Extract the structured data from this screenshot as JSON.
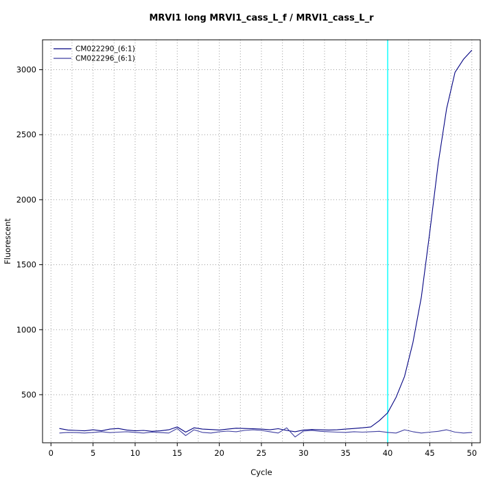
{
  "title": "MRVI1 long MRVI1_cass_L_f / MRVI1_cass_L_r",
  "colors": {
    "background": "#ffffff",
    "axis": "#000000",
    "grid": "#9a9a9a",
    "threshold": "#00ffff"
  },
  "chart_data": {
    "type": "line",
    "title": "MRVI1 long MRVI1_cass_L_f / MRVI1_cass_L_r",
    "xlabel": "Cycle",
    "ylabel": "Fluorescent",
    "xlim": [
      -1,
      51
    ],
    "ylim": [
      130,
      3230
    ],
    "x_ticks": [
      0,
      5,
      10,
      15,
      20,
      25,
      30,
      35,
      40,
      45,
      50
    ],
    "y_ticks": [
      500,
      1000,
      1500,
      2000,
      2500,
      3000
    ],
    "grid": {
      "x_step": 2.5,
      "y_step": 500,
      "style": "dotted",
      "color": "#9a9a9a"
    },
    "threshold_line": {
      "x": 40,
      "color": "#00ffff"
    },
    "legend_position": "top-left",
    "x": [
      1,
      2,
      3,
      4,
      5,
      6,
      7,
      8,
      9,
      10,
      11,
      12,
      13,
      14,
      15,
      16,
      17,
      18,
      19,
      20,
      21,
      22,
      23,
      24,
      25,
      26,
      27,
      28,
      29,
      30,
      31,
      32,
      33,
      34,
      35,
      36,
      37,
      38,
      39,
      40,
      41,
      42,
      43,
      44,
      45,
      46,
      47,
      48,
      49,
      50
    ],
    "series": [
      {
        "name": "CM022290_(6:1)",
        "color": "#000080",
        "values": [
          240,
          228,
          225,
          222,
          230,
          222,
          235,
          240,
          228,
          222,
          225,
          218,
          222,
          230,
          252,
          212,
          245,
          235,
          232,
          228,
          235,
          242,
          240,
          238,
          235,
          230,
          238,
          225,
          215,
          228,
          232,
          230,
          228,
          230,
          235,
          240,
          245,
          252,
          300,
          360,
          480,
          640,
          900,
          1250,
          1750,
          2280,
          2700,
          2980,
          3080,
          3150
        ]
      },
      {
        "name": "CM022296_(6:1)",
        "color": "#3d3da0",
        "values": [
          205,
          210,
          208,
          205,
          210,
          215,
          208,
          212,
          215,
          210,
          205,
          212,
          208,
          205,
          240,
          185,
          230,
          210,
          205,
          215,
          220,
          215,
          225,
          230,
          225,
          215,
          205,
          245,
          175,
          220,
          225,
          218,
          215,
          212,
          210,
          215,
          212,
          215,
          218,
          210,
          205,
          230,
          215,
          205,
          212,
          218,
          230,
          212,
          205,
          210
        ]
      }
    ]
  }
}
